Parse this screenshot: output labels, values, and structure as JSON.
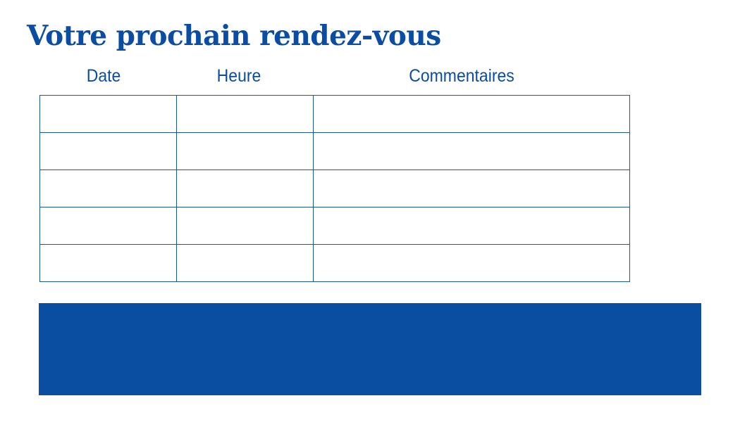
{
  "title": "Votre prochain rendez-vous",
  "table": {
    "headers": [
      "Date",
      "Heure",
      "Commentaires"
    ],
    "rows": [
      [
        "",
        "",
        ""
      ],
      [
        "",
        "",
        ""
      ],
      [
        "",
        "",
        ""
      ],
      [
        "",
        "",
        ""
      ],
      [
        "",
        "",
        ""
      ]
    ]
  },
  "colors": {
    "accent": "#0a4da2",
    "band": "#0a4ea2"
  }
}
